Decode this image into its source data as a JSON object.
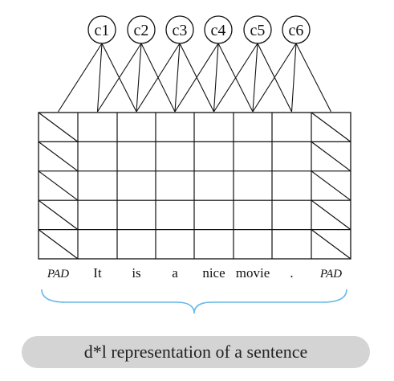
{
  "context_nodes": [
    "c1",
    "c2",
    "c3",
    "c4",
    "c5",
    "c6"
  ],
  "tokens": [
    "PAD",
    "It",
    "is",
    "a",
    "nice",
    "movie",
    ".",
    "PAD"
  ],
  "rows": 5,
  "caption": "d*l representation of a sentence",
  "colors": {
    "line": "#111111",
    "brace": "#66b8e6",
    "caption_bg": "#d4d4d4"
  }
}
